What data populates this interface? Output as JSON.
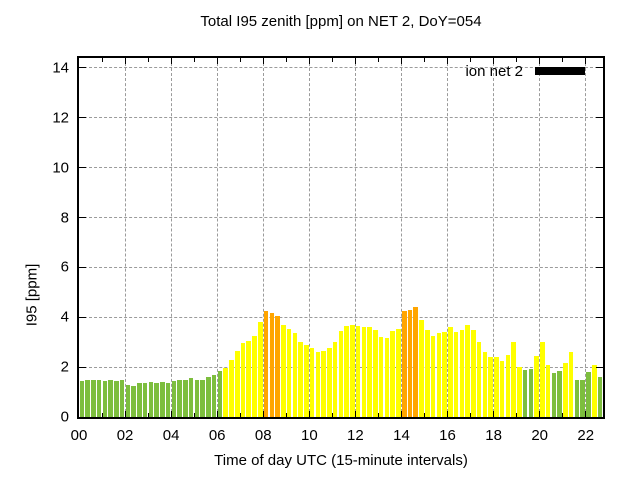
{
  "title": "Total I95 zenith [ppm] on NET 2, DoY=054",
  "legend": {
    "label": "ion net 2",
    "swatch_color": "#000000"
  },
  "axes": {
    "ylabel": "I95 [ppm]",
    "xlabel": "Time of day UTC (15-minute intervals)",
    "yticks": [
      0,
      2,
      4,
      6,
      8,
      10,
      12,
      14
    ],
    "xticks": [
      "00",
      "02",
      "04",
      "06",
      "08",
      "10",
      "12",
      "14",
      "16",
      "18",
      "20",
      "22"
    ]
  },
  "colors": {
    "background": "#ffffff",
    "axis": "#000000",
    "grid": "#9b9b9b",
    "levels": {
      "g": "#7dbe3e",
      "y": "#ffff00",
      "o": "#ffa500"
    }
  },
  "chart_data": {
    "type": "bar",
    "title": "Total I95 zenith [ppm] on NET 2, DoY=054",
    "xlabel": "Time of day UTC (15-minute intervals)",
    "ylabel": "I95 [ppm]",
    "legend_entries": [
      "ion net 2"
    ],
    "legend_position": "top-right-inside",
    "grid": "dashed",
    "interval_minutes": 15,
    "ylim": [
      0,
      14.4
    ],
    "xlim_hours": [
      0,
      22.75
    ],
    "bar_width_hours": 0.25,
    "times": [
      "00:00",
      "00:15",
      "00:30",
      "00:45",
      "01:00",
      "01:15",
      "01:30",
      "01:45",
      "02:00",
      "02:15",
      "02:30",
      "02:45",
      "03:00",
      "03:15",
      "03:30",
      "03:45",
      "04:00",
      "04:15",
      "04:30",
      "04:45",
      "05:00",
      "05:15",
      "05:30",
      "05:45",
      "06:00",
      "06:15",
      "06:30",
      "06:45",
      "07:00",
      "07:15",
      "07:30",
      "07:45",
      "08:00",
      "08:15",
      "08:30",
      "08:45",
      "09:00",
      "09:15",
      "09:30",
      "09:45",
      "10:00",
      "10:15",
      "10:30",
      "10:45",
      "11:00",
      "11:15",
      "11:30",
      "11:45",
      "12:00",
      "12:15",
      "12:30",
      "12:45",
      "13:00",
      "13:15",
      "13:30",
      "13:45",
      "14:00",
      "14:15",
      "14:30",
      "14:45",
      "15:00",
      "15:15",
      "15:30",
      "15:45",
      "16:00",
      "16:15",
      "16:30",
      "16:45",
      "17:00",
      "17:15",
      "17:30",
      "17:45",
      "18:00",
      "18:15",
      "18:30",
      "18:45",
      "19:00",
      "19:15",
      "19:30",
      "19:45",
      "20:00",
      "20:15",
      "20:30",
      "20:45",
      "21:00",
      "21:15",
      "21:30",
      "21:45",
      "22:00",
      "22:15",
      "22:30"
    ],
    "values": [
      1.45,
      1.5,
      1.5,
      1.48,
      1.45,
      1.48,
      1.45,
      1.5,
      1.3,
      1.25,
      1.35,
      1.35,
      1.4,
      1.35,
      1.4,
      1.35,
      1.45,
      1.5,
      1.5,
      1.55,
      1.5,
      1.5,
      1.6,
      1.7,
      1.85,
      1.95,
      2.3,
      2.65,
      2.95,
      3.05,
      3.25,
      3.8,
      4.25,
      4.18,
      4.05,
      3.7,
      3.55,
      3.35,
      3.0,
      2.9,
      2.75,
      2.6,
      2.65,
      2.75,
      3.0,
      3.45,
      3.65,
      3.7,
      3.65,
      3.6,
      3.6,
      3.5,
      3.2,
      3.15,
      3.45,
      3.55,
      4.25,
      4.3,
      4.4,
      3.9,
      3.5,
      3.25,
      3.35,
      3.4,
      3.6,
      3.4,
      3.5,
      3.7,
      3.5,
      3.0,
      2.6,
      2.4,
      2.4,
      2.25,
      2.5,
      3.0,
      2.0,
      1.9,
      1.92,
      2.45,
      3.0,
      2.1,
      1.75,
      1.85,
      2.15,
      2.6,
      1.5,
      1.5,
      1.8,
      2.1,
      1.6
    ],
    "levels": [
      "g",
      "g",
      "g",
      "g",
      "g",
      "g",
      "g",
      "g",
      "g",
      "g",
      "g",
      "g",
      "g",
      "g",
      "g",
      "g",
      "g",
      "g",
      "g",
      "g",
      "g",
      "g",
      "g",
      "g",
      "g",
      "y",
      "y",
      "y",
      "y",
      "y",
      "y",
      "y",
      "o",
      "o",
      "o",
      "y",
      "y",
      "y",
      "y",
      "y",
      "y",
      "y",
      "y",
      "y",
      "y",
      "y",
      "y",
      "y",
      "y",
      "y",
      "y",
      "y",
      "y",
      "y",
      "y",
      "y",
      "o",
      "o",
      "o",
      "y",
      "y",
      "y",
      "y",
      "y",
      "y",
      "y",
      "y",
      "y",
      "y",
      "y",
      "y",
      "y",
      "y",
      "y",
      "y",
      "y",
      "y",
      "g",
      "g",
      "y",
      "y",
      "y",
      "g",
      "g",
      "y",
      "y",
      "g",
      "g",
      "g",
      "y",
      "g"
    ]
  }
}
